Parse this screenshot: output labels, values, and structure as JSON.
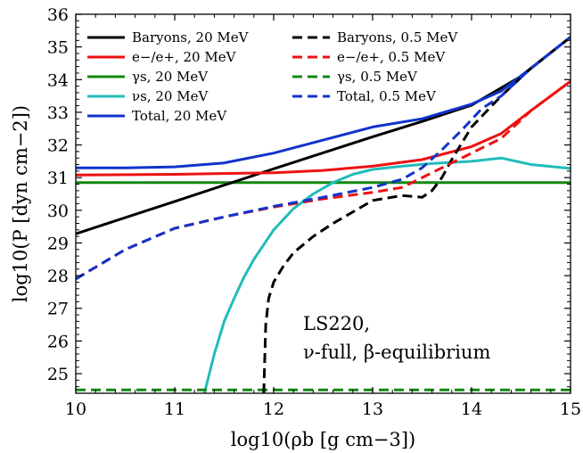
{
  "chart_data": {
    "type": "line",
    "title": "",
    "xlabel": "log10(ρb [g cm−3])",
    "ylabel": "log10(P [dyn cm−2])",
    "xlim": [
      10,
      15
    ],
    "ylim": [
      24.4,
      36
    ],
    "xticks": [
      "10",
      "11",
      "12",
      "13",
      "14",
      "15"
    ],
    "yticks": [
      "25",
      "26",
      "27",
      "28",
      "29",
      "30",
      "31",
      "32",
      "33",
      "34",
      "35",
      "36"
    ],
    "grid": false,
    "legend_position": "top",
    "annotation": [
      "LS220,",
      "ν-full, β-equilibrium"
    ],
    "series": [
      {
        "name": "Baryons, 20 MeV",
        "color": "#000000",
        "dash": "solid",
        "x": [
          10,
          11,
          12,
          13,
          13.5,
          14,
          14.5,
          15
        ],
        "y": [
          29.28,
          30.27,
          31.27,
          32.25,
          32.72,
          33.22,
          34.1,
          35.3
        ]
      },
      {
        "name": "e−/e+, 20 MeV",
        "color": "#ee1111",
        "dash": "solid",
        "x": [
          10,
          11,
          12,
          12.5,
          13,
          13.5,
          14,
          14.3,
          14.6,
          15
        ],
        "y": [
          31.08,
          31.1,
          31.15,
          31.22,
          31.35,
          31.55,
          31.95,
          32.35,
          33.05,
          33.95
        ]
      },
      {
        "name": "γs, 20 MeV",
        "color": "#118811",
        "dash": "solid",
        "x": [
          10,
          15
        ],
        "y": [
          30.85,
          30.85
        ]
      },
      {
        "name": "νs, 20 MeV",
        "color": "#22bbbb",
        "dash": "solid",
        "x": [
          11.3,
          11.4,
          11.5,
          11.6,
          11.7,
          11.8,
          11.9,
          12.0,
          12.2,
          12.4,
          12.6,
          12.8,
          13.0,
          13.3,
          13.6,
          14.0,
          14.3,
          14.6,
          15
        ],
        "y": [
          24.4,
          25.6,
          26.6,
          27.3,
          27.95,
          28.5,
          28.95,
          29.4,
          30.05,
          30.5,
          30.85,
          31.1,
          31.25,
          31.35,
          31.43,
          31.5,
          31.6,
          31.4,
          31.28
        ]
      },
      {
        "name": "Total, 20 MeV",
        "color": "#1133cc",
        "dash": "solid",
        "x": [
          10,
          10.5,
          11,
          11.5,
          12,
          12.5,
          13,
          13.5,
          14,
          14.3,
          14.6,
          15
        ],
        "y": [
          31.3,
          31.3,
          31.33,
          31.45,
          31.75,
          32.15,
          32.55,
          32.8,
          33.25,
          33.65,
          34.35,
          35.3
        ]
      },
      {
        "name": "Baryons, 0.5 MeV",
        "color": "#000000",
        "dash": "dashed",
        "x": [
          11.9,
          11.92,
          11.95,
          12.0,
          12.1,
          12.2,
          12.4,
          12.6,
          12.8,
          13.0,
          13.3,
          13.5,
          13.6,
          13.7,
          13.8,
          13.9,
          14.0,
          14.3,
          14.6,
          15
        ],
        "y": [
          24.4,
          26.5,
          27.3,
          27.8,
          28.3,
          28.7,
          29.2,
          29.6,
          29.95,
          30.3,
          30.45,
          30.4,
          30.6,
          31.0,
          31.55,
          32.05,
          32.55,
          33.5,
          34.35,
          35.3
        ]
      },
      {
        "name": "e−/e+, 0.5 MeV",
        "color": "#ee1111",
        "dash": "dashed",
        "x": [
          10,
          10.5,
          11,
          11.5,
          12,
          12.5,
          13,
          13.3,
          13.6,
          14,
          14.3,
          14.6,
          15
        ],
        "y": [
          27.9,
          28.8,
          29.45,
          29.8,
          30.1,
          30.35,
          30.55,
          30.7,
          31.15,
          31.75,
          32.2,
          33.05,
          33.95
        ]
      },
      {
        "name": "γs, 0.5 MeV",
        "color": "#118811",
        "dash": "dashed",
        "x": [
          10,
          15
        ],
        "y": [
          24.5,
          24.5
        ]
      },
      {
        "name": "Total, 0.5 MeV",
        "color": "#1133cc",
        "dash": "dashed",
        "x": [
          10,
          10.5,
          11,
          11.5,
          12,
          12.5,
          13,
          13.3,
          13.5,
          13.7,
          13.9,
          14.1,
          14.3,
          14.6,
          15
        ],
        "y": [
          27.9,
          28.8,
          29.45,
          29.8,
          30.12,
          30.4,
          30.7,
          30.95,
          31.3,
          31.85,
          32.45,
          33.1,
          33.5,
          34.35,
          35.3
        ]
      }
    ]
  }
}
